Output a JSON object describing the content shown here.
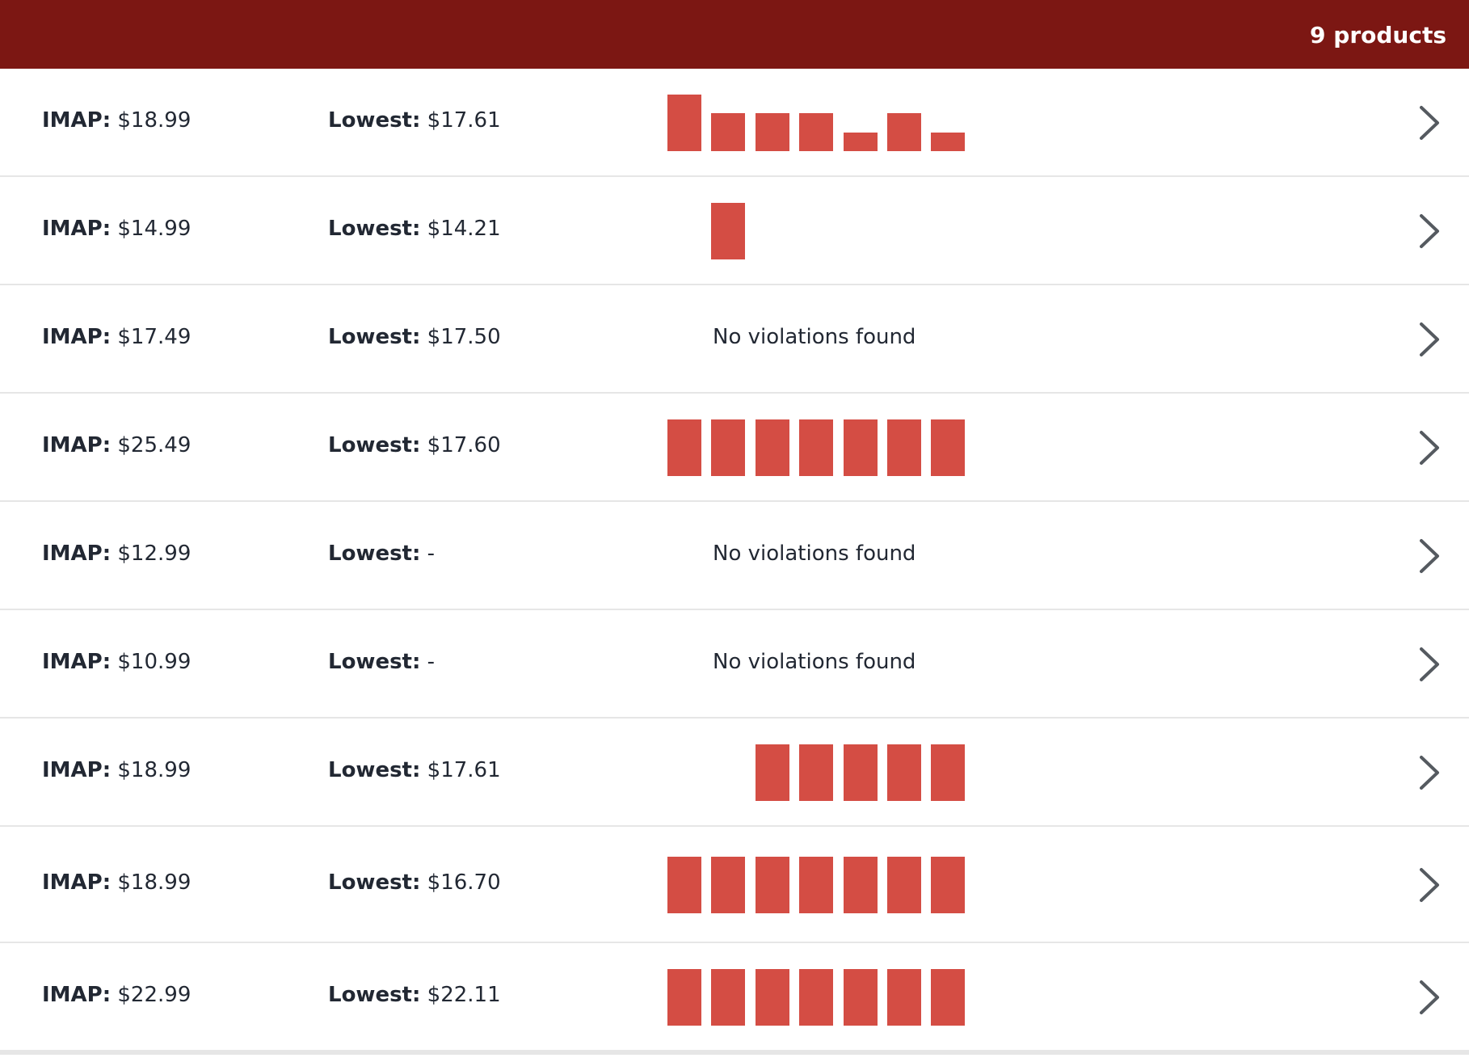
{
  "header": {
    "count_label": "9 products",
    "bg_color": "#7c1713"
  },
  "labels": {
    "imap": "IMAP:",
    "lowest": "Lowest:"
  },
  "bar_color": "#d44d44",
  "rows": [
    {
      "imap": "$18.99",
      "lowest": "$17.61",
      "bars": [
        1.0,
        0.67,
        0.67,
        0.67,
        0.33,
        0.67,
        0.33
      ],
      "status": ""
    },
    {
      "imap": "$14.99",
      "lowest": "$14.21",
      "bars": [
        0,
        1.0,
        0,
        0,
        0,
        0,
        0
      ],
      "status": ""
    },
    {
      "imap": "$17.49",
      "lowest": "$17.50",
      "bars": [],
      "status": "No violations found"
    },
    {
      "imap": "$25.49",
      "lowest": "$17.60",
      "bars": [
        1,
        1,
        1,
        1,
        1,
        1,
        1
      ],
      "status": ""
    },
    {
      "imap": "$12.99",
      "lowest": "-",
      "bars": [],
      "status": "No violations found"
    },
    {
      "imap": "$10.99",
      "lowest": "-",
      "bars": [],
      "status": "No violations found"
    },
    {
      "imap": "$18.99",
      "lowest": "$17.61",
      "bars": [
        0,
        0,
        1,
        1,
        1,
        1,
        1
      ],
      "status": ""
    },
    {
      "imap": "$18.99",
      "lowest": "$16.70",
      "bars": [
        1,
        1,
        1,
        1,
        1,
        1,
        1
      ],
      "status": ""
    },
    {
      "imap": "$22.99",
      "lowest": "$22.11",
      "bars": [
        1,
        1,
        1,
        1,
        1,
        1,
        1
      ],
      "status": ""
    }
  ]
}
